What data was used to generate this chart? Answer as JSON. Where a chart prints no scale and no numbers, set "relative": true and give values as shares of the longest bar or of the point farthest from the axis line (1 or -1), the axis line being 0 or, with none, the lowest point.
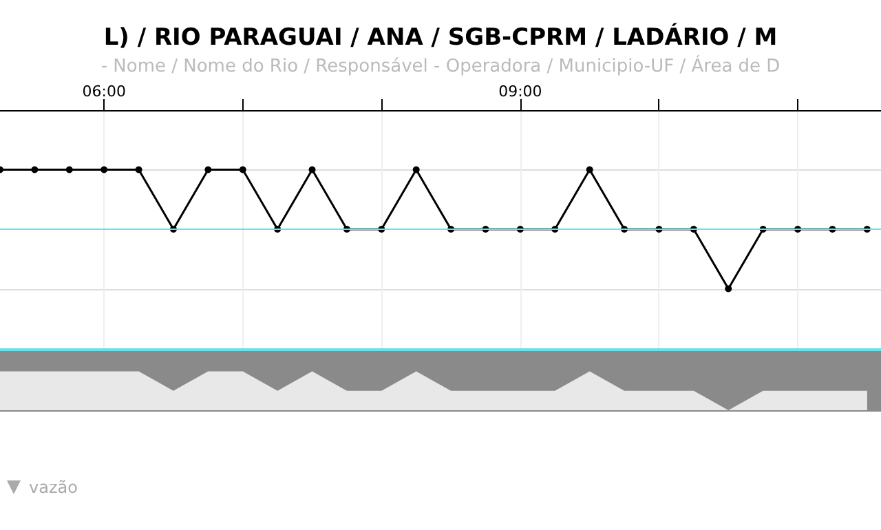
{
  "chart_data": [
    {
      "type": "line",
      "title": "L) / RIO PARAGUAI / ANA / SGB-CPRM / LADÁRIO / M",
      "subtitle": "- Nome / Nome do Rio / Responsável - Operadora / Municipio-UF / Área de D",
      "x": [
        5.25,
        5.5,
        5.75,
        6,
        6.25,
        6.5,
        6.75,
        7,
        7.25,
        7.5,
        7.75,
        8,
        8.25,
        8.5,
        8.75,
        9,
        9.25,
        9.5,
        9.75,
        10,
        10.25,
        10.5,
        10.75,
        11,
        11.25,
        11.5
      ],
      "xlim": [
        5.25,
        11.6
      ],
      "xticks": [
        {
          "value": 6,
          "label": "06:00"
        },
        {
          "value": 7,
          "label": null
        },
        {
          "value": 8,
          "label": null
        },
        {
          "value": 9,
          "label": "09:00"
        },
        {
          "value": 10,
          "label": null
        },
        {
          "value": 11,
          "label": null
        }
      ],
      "relative": true,
      "series": [
        {
          "color": "#000000",
          "values": [
            1,
            1,
            1,
            1,
            1,
            0.5,
            1,
            1,
            0.5,
            1,
            0.5,
            0.5,
            1,
            0.5,
            0.5,
            0.5,
            0.5,
            1,
            0.5,
            0.5,
            0.5,
            0,
            0.5,
            0.5,
            0.5,
            0.5
          ]
        },
        {
          "name": "vazão",
          "color": "#aaaaaa",
          "values": [
            null,
            null,
            null,
            null,
            null,
            null,
            null,
            null,
            null,
            null,
            null,
            null,
            null,
            null,
            null,
            null,
            null,
            null,
            null,
            null,
            null,
            null,
            null,
            null,
            null,
            null
          ]
        }
      ],
      "ref_lines": [
        {
          "axis": "y",
          "value": 0.5,
          "color": "#66e3ea"
        }
      ],
      "grid": true,
      "marker": "circle",
      "legend": "bottom left",
      "tick_labels": "x"
    },
    {
      "type": "area",
      "relative": true,
      "tick_labels": false,
      "x": [
        5.25,
        5.5,
        5.75,
        6,
        6.25,
        6.5,
        6.75,
        7,
        7.25,
        7.5,
        7.75,
        8,
        8.25,
        8.5,
        8.75,
        9,
        9.25,
        9.5,
        9.75,
        10,
        10.25,
        10.5,
        10.75,
        11,
        11.25,
        11.5
      ],
      "xlim": [
        5.25,
        11.6
      ],
      "series": [
        {
          "color": "#e8e8e8",
          "values": [
            1,
            1,
            1,
            1,
            1,
            0.5,
            1,
            1,
            0.5,
            1,
            0.5,
            0.5,
            1,
            0.5,
            0.5,
            0.5,
            0.5,
            1,
            0.5,
            0.5,
            0.5,
            0,
            0.5,
            0.5,
            0.5,
            0.5
          ]
        }
      ]
    }
  ]
}
